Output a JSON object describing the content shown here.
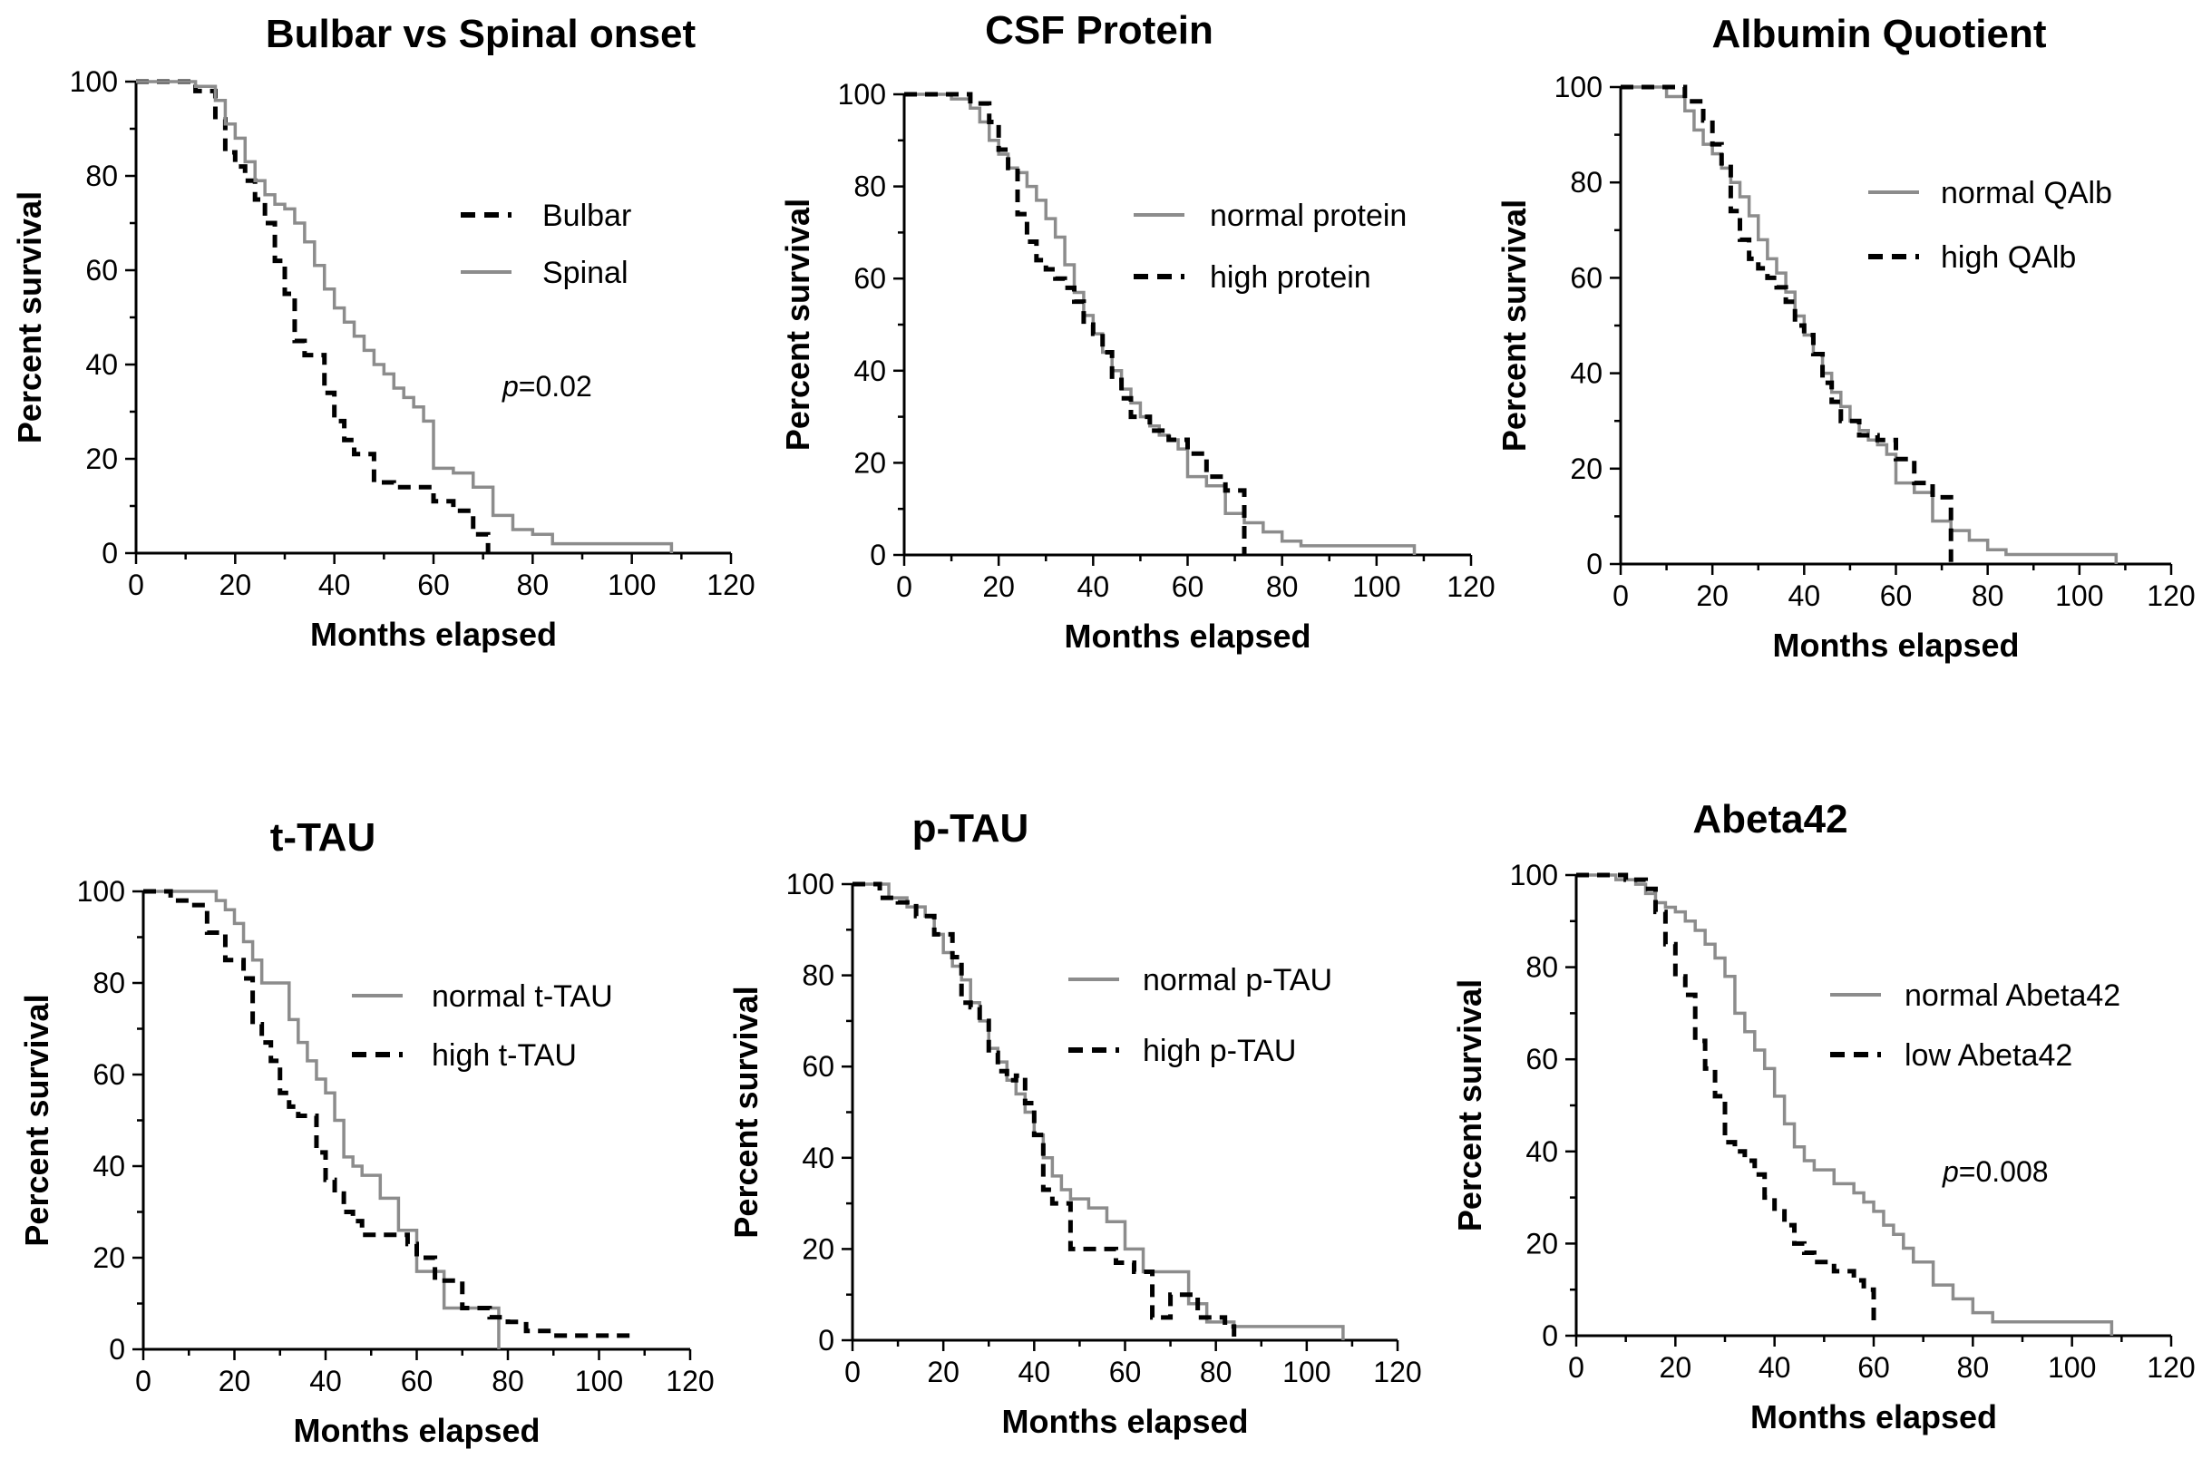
{
  "chart_data": [
    {
      "type": "line",
      "subtype": "kaplan-meier",
      "title": "Bulbar vs Spinal onset",
      "xlabel": "Months elapsed",
      "ylabel": "Percent survival",
      "xlim": [
        0,
        120
      ],
      "ylim": [
        0,
        100
      ],
      "xticks": [
        "0",
        "20",
        "40",
        "60",
        "80",
        "100",
        "120"
      ],
      "yticks": [
        "0",
        "20",
        "40",
        "60",
        "80",
        "100"
      ],
      "annotation": {
        "prefix": "p",
        "text": "=0.02"
      },
      "series": [
        {
          "name": "Bulbar",
          "style": "dashed",
          "color": "#000000",
          "x": [
            0,
            12,
            16,
            18,
            20,
            22,
            24,
            26,
            28,
            30,
            32,
            34,
            38,
            40,
            42,
            44,
            48,
            52,
            56,
            60,
            64,
            68,
            71
          ],
          "y": [
            100,
            98,
            92,
            85,
            82,
            79,
            75,
            70,
            62,
            55,
            45,
            42,
            34,
            28,
            24,
            21,
            15,
            14,
            14,
            11,
            9,
            4,
            0
          ]
        },
        {
          "name": "Spinal",
          "style": "solid",
          "color": "#8c8c8c",
          "x": [
            0,
            12,
            16,
            18,
            20,
            22,
            24,
            26,
            28,
            30,
            32,
            34,
            36,
            38,
            40,
            42,
            44,
            46,
            48,
            50,
            52,
            54,
            56,
            58,
            60,
            64,
            68,
            72,
            76,
            80,
            84,
            96,
            108
          ],
          "y": [
            100,
            99,
            96,
            91,
            88,
            83,
            79,
            76,
            74,
            73,
            70,
            66,
            61,
            56,
            52,
            49,
            46,
            43,
            40,
            38,
            35,
            33,
            31,
            28,
            18,
            17,
            14,
            8,
            5,
            4,
            2,
            2,
            0
          ]
        }
      ]
    },
    {
      "type": "line",
      "subtype": "kaplan-meier",
      "title": "CSF Protein",
      "xlabel": "Months elapsed",
      "ylabel": "Percent survival",
      "xlim": [
        0,
        120
      ],
      "ylim": [
        0,
        100
      ],
      "xticks": [
        "0",
        "20",
        "40",
        "60",
        "80",
        "100",
        "120"
      ],
      "yticks": [
        "0",
        "20",
        "40",
        "60",
        "80",
        "100"
      ],
      "series": [
        {
          "name": "normal protein",
          "style": "solid",
          "color": "#8c8c8c",
          "x": [
            0,
            10,
            14,
            16,
            18,
            20,
            22,
            24,
            26,
            28,
            30,
            32,
            34,
            36,
            38,
            40,
            42,
            44,
            46,
            48,
            50,
            52,
            54,
            56,
            58,
            60,
            64,
            68,
            72,
            76,
            80,
            84,
            108
          ],
          "y": [
            100,
            99,
            97,
            94,
            90,
            87,
            84,
            83,
            80,
            77,
            73,
            69,
            63,
            57,
            52,
            48,
            44,
            40,
            36,
            33,
            30,
            28,
            26,
            25,
            23,
            17,
            15,
            9,
            7,
            5,
            3,
            2,
            0
          ]
        },
        {
          "name": "high protein",
          "style": "dashed",
          "color": "#000000",
          "x": [
            0,
            14,
            18,
            20,
            22,
            24,
            26,
            28,
            30,
            32,
            34,
            36,
            38,
            40,
            42,
            44,
            46,
            48,
            52,
            56,
            60,
            64,
            68,
            72
          ],
          "y": [
            100,
            98,
            94,
            88,
            84,
            74,
            68,
            64,
            62,
            60,
            58,
            55,
            50,
            48,
            44,
            38,
            34,
            30,
            27,
            25,
            22,
            17,
            14,
            0
          ]
        }
      ]
    },
    {
      "type": "line",
      "subtype": "kaplan-meier",
      "title": "Albumin Quotient",
      "xlabel": "Months elapsed",
      "ylabel": "Percent survival",
      "xlim": [
        0,
        120
      ],
      "ylim": [
        0,
        100
      ],
      "xticks": [
        "0",
        "20",
        "40",
        "60",
        "80",
        "100",
        "120"
      ],
      "yticks": [
        "0",
        "20",
        "40",
        "60",
        "80",
        "100"
      ],
      "series": [
        {
          "name": "normal QAlb",
          "style": "solid",
          "color": "#8c8c8c",
          "x": [
            0,
            10,
            14,
            16,
            18,
            20,
            22,
            24,
            26,
            28,
            30,
            32,
            34,
            36,
            38,
            40,
            42,
            44,
            46,
            48,
            50,
            52,
            54,
            56,
            58,
            60,
            64,
            68,
            72,
            76,
            80,
            84,
            108
          ],
          "y": [
            100,
            98,
            95,
            91,
            88,
            86,
            83,
            80,
            77,
            73,
            68,
            64,
            61,
            57,
            52,
            48,
            44,
            40,
            36,
            33,
            30,
            28,
            26,
            25,
            23,
            17,
            15,
            9,
            7,
            5,
            3,
            2,
            0
          ]
        },
        {
          "name": "high QAlb",
          "style": "dashed",
          "color": "#000000",
          "x": [
            0,
            14,
            18,
            20,
            22,
            24,
            26,
            28,
            30,
            32,
            34,
            36,
            38,
            40,
            42,
            44,
            46,
            48,
            52,
            56,
            60,
            64,
            68,
            72
          ],
          "y": [
            100,
            97,
            93,
            88,
            84,
            74,
            68,
            64,
            62,
            60,
            58,
            55,
            50,
            48,
            44,
            38,
            34,
            30,
            27,
            26,
            22,
            17,
            14,
            0
          ]
        }
      ]
    },
    {
      "type": "line",
      "subtype": "kaplan-meier",
      "title": "t-TAU",
      "xlabel": "Months elapsed",
      "ylabel": "Percent survival",
      "xlim": [
        0,
        120
      ],
      "ylim": [
        0,
        100
      ],
      "xticks": [
        "0",
        "20",
        "40",
        "60",
        "80",
        "100",
        "120"
      ],
      "yticks": [
        "0",
        "20",
        "40",
        "60",
        "80",
        "100"
      ],
      "series": [
        {
          "name": "normal t-TAU",
          "style": "solid",
          "color": "#8c8c8c",
          "x": [
            0,
            14,
            16,
            18,
            20,
            22,
            24,
            26,
            30,
            32,
            34,
            36,
            38,
            40,
            42,
            44,
            46,
            48,
            52,
            56,
            60,
            66,
            72,
            78
          ],
          "y": [
            100,
            100,
            98,
            96,
            93,
            89,
            85,
            80,
            80,
            72,
            67,
            63,
            59,
            56,
            50,
            42,
            40,
            38,
            33,
            26,
            17,
            9,
            9,
            0
          ]
        },
        {
          "name": "high t-TAU",
          "style": "dashed",
          "color": "#000000",
          "x": [
            0,
            6,
            10,
            14,
            18,
            22,
            24,
            26,
            28,
            30,
            32,
            34,
            38,
            40,
            42,
            44,
            46,
            48,
            52,
            58,
            60,
            64,
            70,
            76,
            80,
            84,
            90,
            108
          ],
          "y": [
            100,
            98,
            97,
            91,
            85,
            81,
            71,
            67,
            63,
            56,
            53,
            51,
            43,
            37,
            34,
            30,
            28,
            25,
            25,
            23,
            20,
            15,
            9,
            7,
            6,
            4,
            3,
            3
          ]
        }
      ]
    },
    {
      "type": "line",
      "subtype": "kaplan-meier",
      "title": "p-TAU",
      "xlabel": "Months elapsed",
      "ylabel": "Percent survival",
      "xlim": [
        0,
        120
      ],
      "ylim": [
        0,
        100
      ],
      "xticks": [
        "0",
        "20",
        "40",
        "60",
        "80",
        "100",
        "120"
      ],
      "yticks": [
        "0",
        "20",
        "40",
        "60",
        "80",
        "100"
      ],
      "series": [
        {
          "name": "normal p-TAU",
          "style": "solid",
          "color": "#8c8c8c",
          "x": [
            0,
            8,
            12,
            16,
            18,
            20,
            22,
            24,
            26,
            28,
            30,
            32,
            34,
            36,
            38,
            40,
            42,
            44,
            46,
            48,
            50,
            52,
            56,
            60,
            64,
            70,
            74,
            78,
            84,
            96,
            108
          ],
          "y": [
            100,
            97,
            95,
            93,
            89,
            85,
            82,
            79,
            74,
            70,
            64,
            61,
            57,
            54,
            50,
            45,
            40,
            36,
            33,
            31,
            31,
            29,
            26,
            20,
            15,
            15,
            8,
            4,
            3,
            3,
            0
          ]
        },
        {
          "name": "high p-TAU",
          "style": "dashed",
          "color": "#000000",
          "x": [
            0,
            6,
            10,
            14,
            18,
            22,
            24,
            26,
            28,
            30,
            32,
            34,
            36,
            38,
            40,
            42,
            44,
            48,
            54,
            58,
            62,
            66,
            70,
            76,
            82,
            84
          ],
          "y": [
            100,
            97,
            96,
            93,
            89,
            84,
            74,
            73,
            70,
            63,
            59,
            57,
            58,
            52,
            45,
            33,
            30,
            20,
            20,
            17,
            15,
            5,
            10,
            5,
            3,
            0
          ]
        }
      ]
    },
    {
      "type": "line",
      "subtype": "kaplan-meier",
      "title": "Abeta42",
      "xlabel": "Months elapsed",
      "ylabel": "Percent survival",
      "xlim": [
        0,
        120
      ],
      "ylim": [
        0,
        100
      ],
      "xticks": [
        "0",
        "20",
        "40",
        "60",
        "80",
        "100",
        "120"
      ],
      "yticks": [
        "0",
        "20",
        "40",
        "60",
        "80",
        "100"
      ],
      "annotation": {
        "prefix": "p",
        "text": "=0.008"
      },
      "series": [
        {
          "name": "normal Abeta42",
          "style": "solid",
          "color": "#8c8c8c",
          "x": [
            0,
            8,
            12,
            14,
            16,
            18,
            20,
            22,
            24,
            26,
            28,
            30,
            32,
            34,
            36,
            38,
            40,
            42,
            44,
            46,
            48,
            52,
            56,
            58,
            60,
            62,
            64,
            66,
            68,
            72,
            76,
            80,
            84,
            96,
            108
          ],
          "y": [
            100,
            99,
            98,
            96,
            94,
            93,
            92,
            90,
            88,
            85,
            82,
            78,
            70,
            66,
            62,
            58,
            52,
            46,
            41,
            38,
            36,
            33,
            31,
            29,
            27,
            24,
            22,
            19,
            16,
            11,
            8,
            5,
            3,
            3,
            0
          ]
        },
        {
          "name": "low Abeta42",
          "style": "dashed",
          "color": "#000000",
          "x": [
            0,
            10,
            14,
            16,
            18,
            20,
            22,
            24,
            26,
            28,
            30,
            32,
            34,
            36,
            38,
            40,
            42,
            44,
            46,
            48,
            52,
            56,
            58,
            60
          ],
          "y": [
            100,
            99,
            97,
            92,
            85,
            78,
            74,
            64,
            58,
            52,
            42,
            40,
            38,
            35,
            30,
            27,
            24,
            20,
            18,
            16,
            14,
            12,
            10,
            3
          ]
        }
      ]
    }
  ]
}
